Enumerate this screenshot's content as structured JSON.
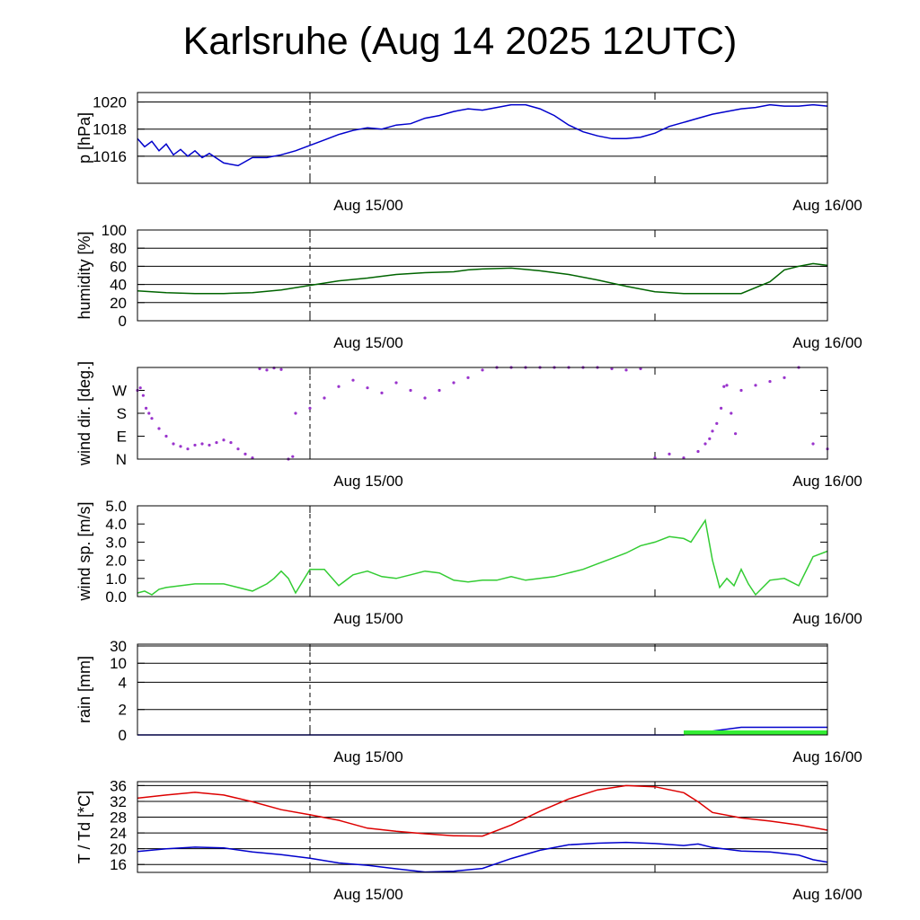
{
  "title": "Karlsruhe (Aug 14 2025 12UTC)",
  "x_tick_labels": [
    "Aug 15/00",
    "Aug 16/00"
  ],
  "chart_data": [
    {
      "id": "pressure",
      "type": "line",
      "ylabel": "p [hPa]",
      "ylim": [
        1014,
        1020.7
      ],
      "yticks": [
        1016,
        1018,
        1020
      ],
      "ytick_labels": [
        "1016",
        "1018",
        "1020"
      ],
      "grid": true,
      "series": [
        {
          "color": "#0000cc",
          "x": [
            0,
            0.5,
            1,
            1.5,
            2,
            2.5,
            3,
            3.5,
            4,
            4.5,
            5,
            6,
            7,
            8,
            9,
            10,
            11,
            12,
            13,
            14,
            15,
            16,
            17,
            18,
            19,
            20,
            21,
            22,
            23,
            24,
            25,
            26,
            27,
            28,
            29,
            30,
            31,
            32,
            33,
            34,
            35,
            36,
            37,
            38,
            39,
            40,
            41,
            42,
            43,
            44,
            45,
            46,
            47,
            48
          ],
          "y": [
            1017.3,
            1016.7,
            1017.1,
            1016.4,
            1016.9,
            1016.1,
            1016.5,
            1016.0,
            1016.4,
            1015.9,
            1016.2,
            1015.5,
            1015.3,
            1015.9,
            1015.9,
            1016.1,
            1016.4,
            1016.8,
            1017.2,
            1017.6,
            1017.9,
            1018.1,
            1018.0,
            1018.3,
            1018.4,
            1018.8,
            1019.0,
            1019.3,
            1019.5,
            1019.4,
            1019.6,
            1019.8,
            1019.8,
            1019.5,
            1019.0,
            1018.3,
            1017.8,
            1017.5,
            1017.3,
            1017.3,
            1017.4,
            1017.7,
            1018.2,
            1018.5,
            1018.8,
            1019.1,
            1019.3,
            1019.5,
            1019.6,
            1019.8,
            1019.7,
            1019.7,
            1019.8,
            1019.7
          ]
        }
      ]
    },
    {
      "id": "humidity",
      "type": "line",
      "ylabel": "humidity [%]",
      "ylim": [
        0,
        100
      ],
      "yticks": [
        0,
        20,
        40,
        60,
        80,
        100
      ],
      "ytick_labels": [
        "0",
        "20",
        "40",
        "60",
        "80",
        "100"
      ],
      "grid": true,
      "series": [
        {
          "color": "#006400",
          "x": [
            0,
            2,
            4,
            6,
            8,
            10,
            12,
            14,
            16,
            18,
            20,
            22,
            23,
            24,
            26,
            28,
            30,
            32,
            34,
            36,
            38,
            40,
            42,
            44,
            45,
            46,
            47,
            48
          ],
          "y": [
            33,
            31,
            30,
            30,
            31,
            34,
            39,
            44,
            47,
            51,
            53,
            54,
            56,
            57,
            58,
            55,
            51,
            45,
            38,
            32,
            30,
            30,
            30,
            43,
            56,
            60,
            63,
            61
          ]
        }
      ]
    },
    {
      "id": "wind-direction",
      "type": "scatter",
      "ylabel": "wind dir. [deg.]",
      "ylim": [
        0,
        360
      ],
      "yticks": [
        0,
        90,
        180,
        270
      ],
      "ytick_labels": [
        "N",
        "E",
        "S",
        "W"
      ],
      "grid": false,
      "series": [
        {
          "color": "#9933cc",
          "x": [
            0,
            0.2,
            0.4,
            0.6,
            0.8,
            1,
            1.5,
            2,
            2.5,
            3,
            3.5,
            4,
            4.5,
            5,
            5.5,
            6,
            6.5,
            7,
            7.5,
            8,
            8.5,
            9,
            9.5,
            10,
            10.5,
            10.8,
            11,
            12,
            13,
            14,
            15,
            16,
            17,
            18,
            19,
            20,
            21,
            22,
            23,
            24,
            25,
            26,
            27,
            28,
            29,
            30,
            31,
            32,
            33,
            34,
            35,
            36,
            37,
            38,
            39,
            39.5,
            39.8,
            40,
            40.3,
            40.6,
            40.8,
            41,
            41.3,
            41.6,
            42,
            43,
            44,
            45,
            46,
            47,
            48
          ],
          "y": [
            270,
            280,
            250,
            200,
            180,
            160,
            120,
            90,
            60,
            50,
            40,
            55,
            60,
            55,
            65,
            75,
            65,
            40,
            20,
            5,
            355,
            350,
            358,
            352,
            0,
            10,
            180,
            200,
            240,
            285,
            310,
            280,
            260,
            300,
            270,
            240,
            270,
            300,
            320,
            350,
            360,
            360,
            360,
            360,
            360,
            360,
            360,
            360,
            355,
            350,
            355,
            5,
            20,
            5,
            30,
            60,
            80,
            110,
            140,
            200,
            285,
            290,
            180,
            100,
            270,
            290,
            305,
            320,
            360,
            60,
            40
          ]
        }
      ]
    },
    {
      "id": "wind-speed",
      "type": "line",
      "ylabel": "wind sp. [m/s]",
      "ylim": [
        0,
        5
      ],
      "yticks": [
        0,
        1,
        2,
        3,
        4,
        5
      ],
      "ytick_labels": [
        "0.0",
        "1.0",
        "2.0",
        "3.0",
        "4.0",
        "5.0"
      ],
      "grid": false,
      "series": [
        {
          "color": "#33cc33",
          "x": [
            0,
            0.5,
            1,
            1.5,
            2,
            3,
            4,
            5,
            6,
            7,
            8,
            9,
            9.5,
            10,
            10.5,
            11,
            12,
            12.5,
            13,
            14,
            15,
            15.5,
            16,
            17,
            18,
            19,
            20,
            21,
            22,
            23,
            24,
            25,
            26,
            27,
            28,
            29,
            30,
            31,
            32,
            33,
            34,
            35,
            36,
            37,
            38,
            38.5,
            39,
            39.5,
            40,
            40.5,
            41,
            41.5,
            42,
            42.5,
            43,
            43.5,
            44,
            45,
            46,
            47,
            48
          ],
          "y": [
            0.2,
            0.3,
            0.1,
            0.4,
            0.5,
            0.6,
            0.7,
            0.7,
            0.7,
            0.5,
            0.3,
            0.7,
            1.0,
            1.4,
            1.0,
            0.2,
            1.5,
            1.5,
            1.5,
            0.6,
            1.2,
            1.3,
            1.4,
            1.1,
            1.0,
            1.2,
            1.4,
            1.3,
            0.9,
            0.8,
            0.9,
            0.9,
            1.1,
            0.9,
            1.0,
            1.1,
            1.3,
            1.5,
            1.8,
            2.1,
            2.4,
            2.8,
            3.0,
            3.3,
            3.2,
            3.0,
            3.6,
            4.2,
            2.0,
            0.5,
            1.0,
            0.6,
            1.5,
            0.7,
            0.1,
            0.5,
            0.9,
            1.0,
            0.6,
            2.2,
            2.5
          ]
        }
      ]
    },
    {
      "id": "rain",
      "type": "area",
      "ylabel": "rain [mm]",
      "ylim": [
        0,
        30
      ],
      "yticks": [
        0,
        2,
        4,
        10,
        30
      ],
      "ytick_labels": [
        "0",
        "2",
        "4",
        "10",
        "30"
      ],
      "grid": true,
      "series": [
        {
          "color": "#0000cc",
          "x": [
            0,
            38,
            39,
            40,
            42,
            48
          ],
          "y": [
            0,
            0,
            0.2,
            0.3,
            0.6,
            0.6
          ]
        },
        {
          "color": "#33ee33",
          "x": [
            38,
            48
          ],
          "y": [
            0.3,
            0.3
          ]
        }
      ]
    },
    {
      "id": "temperature",
      "type": "line",
      "ylabel": "T / Td [*C]",
      "ylim": [
        14,
        37
      ],
      "yticks": [
        16,
        20,
        24,
        28,
        32,
        36
      ],
      "ytick_labels": [
        "16",
        "20",
        "24",
        "28",
        "32",
        "36"
      ],
      "grid": true,
      "series": [
        {
          "color": "#dd0000",
          "x": [
            0,
            2,
            4,
            6,
            8,
            10,
            12,
            14,
            16,
            18,
            20,
            22,
            24,
            26,
            28,
            30,
            32,
            34,
            36,
            38,
            39,
            40,
            42,
            44,
            46,
            48
          ],
          "y": [
            32.8,
            33.6,
            34.3,
            33.6,
            31.9,
            29.9,
            28.6,
            27.2,
            25.2,
            24.4,
            23.8,
            23.3,
            23.2,
            26.0,
            29.5,
            32.6,
            34.9,
            36.0,
            35.7,
            34.2,
            31.9,
            29.2,
            27.8,
            27.0,
            26.0,
            24.7
          ]
        },
        {
          "color": "#0000cc",
          "x": [
            0,
            2,
            4,
            6,
            8,
            10,
            12,
            14,
            16,
            18,
            20,
            22,
            24,
            26,
            28,
            30,
            32,
            34,
            36,
            38,
            39,
            40,
            42,
            44,
            46,
            47,
            48
          ],
          "y": [
            19.3,
            20.0,
            20.4,
            20.2,
            19.2,
            18.5,
            17.6,
            16.4,
            15.8,
            14.9,
            14.1,
            14.3,
            15.0,
            17.5,
            19.6,
            21.0,
            21.4,
            21.6,
            21.3,
            20.8,
            21.2,
            20.3,
            19.4,
            19.2,
            18.4,
            17.2,
            16.6
          ]
        }
      ]
    }
  ]
}
